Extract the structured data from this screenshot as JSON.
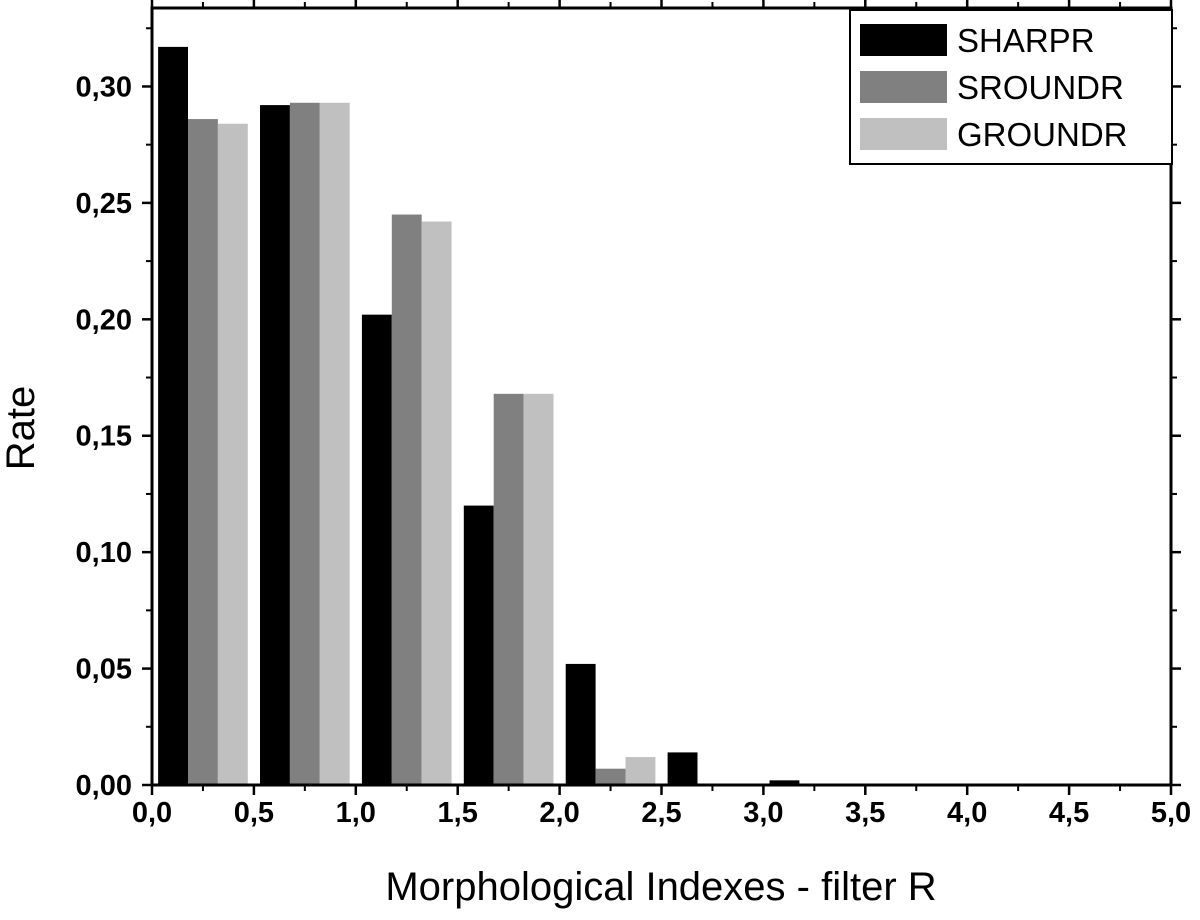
{
  "chart_data": {
    "type": "bar",
    "xlabel": "Morphological Indexes - filter R",
    "ylabel": "Rate",
    "xlim": [
      0.0,
      5.0
    ],
    "ylim": [
      0.0,
      0.3337
    ],
    "x_ticks": [
      0.0,
      0.5,
      1.0,
      1.5,
      2.0,
      2.5,
      3.0,
      3.5,
      4.0,
      4.5,
      5.0
    ],
    "x_tick_labels": [
      "0,0",
      "0,5",
      "1,0",
      "1,5",
      "2,0",
      "2,5",
      "3,0",
      "3,5",
      "4,0",
      "4,5",
      "5,0"
    ],
    "y_ticks": [
      0.0,
      0.05,
      0.1,
      0.15,
      0.2,
      0.25,
      0.3
    ],
    "y_tick_labels": [
      "0,00",
      "0,05",
      "0,10",
      "0,15",
      "0,20",
      "0,25",
      "0,30"
    ],
    "bin_starts": [
      0.0,
      0.5,
      1.0,
      1.5,
      2.0,
      2.5,
      3.0,
      3.5
    ],
    "bin_width": 0.5,
    "grid": false,
    "legend_position": "top-right",
    "series": [
      {
        "name": "SHARPR",
        "color": "#000000",
        "values": [
          0.317,
          0.292,
          0.202,
          0.12,
          0.052,
          0.014,
          0.002,
          0.0
        ]
      },
      {
        "name": "SROUNDR",
        "color": "#808080",
        "values": [
          0.286,
          0.293,
          0.245,
          0.168,
          0.007,
          0.0,
          0.0,
          0.0
        ]
      },
      {
        "name": "GROUNDR",
        "color": "#c0c0c0",
        "values": [
          0.284,
          0.293,
          0.242,
          0.168,
          0.012,
          0.0,
          0.0005,
          0.0005
        ]
      }
    ]
  }
}
